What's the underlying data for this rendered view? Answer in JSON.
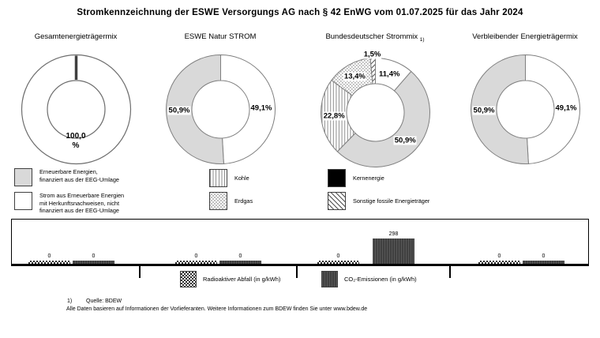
{
  "title": "Stromkennzeichnung der ESWE Versorgungs AG nach § 42 EnWG vom 01.07.2025 für das Jahr 2024",
  "colors": {
    "renewable_gray": "#d9d9d9",
    "outline_gray": "#7f7f7f",
    "co2_bar_dark": "#404040",
    "kernenergie_black": "#000000",
    "background": "#ffffff"
  },
  "chart_data": [
    {
      "type": "donut",
      "title": "Gesamtenergieträgermix",
      "unit": "%",
      "slices": [
        {
          "value": 100.0,
          "label": "100,0\n%",
          "fill": "white",
          "category": "Strom aus Erneuerbare Energien mit Herkunftsnachweisen"
        }
      ]
    },
    {
      "type": "donut",
      "title": "ESWE Natur STROM",
      "unit": "%",
      "slices": [
        {
          "value": 49.1,
          "label": "49,1%",
          "fill": "white",
          "category": "Strom aus Erneuerbare Energien mit Herkunftsnachweisen, nicht finanziert aus der EEG-Umlage"
        },
        {
          "value": 50.9,
          "label": "50,9%",
          "fill": "gray",
          "category": "Erneuerbare Energien, finanziert aus der EEG-Umlage"
        }
      ]
    },
    {
      "type": "donut",
      "title": "Bundesdeutscher Strommix",
      "title_note": "1)",
      "unit": "%",
      "slices": [
        {
          "value": 11.4,
          "label": "11,4%",
          "fill": "white",
          "category": "Strom aus Erneuerbare Energien mit Herkunftsnachweisen, nicht finanziert aus der EEG-Umlage"
        },
        {
          "value": 50.9,
          "label": "50,9%",
          "fill": "gray",
          "category": "Erneuerbare Energien, finanziert aus der EEG-Umlage"
        },
        {
          "value": 22.8,
          "label": "22,8%",
          "fill": "kohle",
          "category": "Kohle"
        },
        {
          "value": 13.4,
          "label": "13,4%",
          "fill": "erdgas",
          "category": "Erdgas"
        },
        {
          "value": 1.5,
          "label": "1,5%",
          "fill": "sonstige",
          "category": "Sonstige fossile Energieträger"
        }
      ]
    },
    {
      "type": "donut",
      "title": "Verbleibender Energieträgermix",
      "unit": "%",
      "slices": [
        {
          "value": 49.1,
          "label": "49,1%",
          "fill": "white",
          "category": "Strom aus Erneuerbare Energien mit Herkunftsnachweisen, nicht finanziert aus der EEG-Umlage"
        },
        {
          "value": 50.9,
          "label": "50,9%",
          "fill": "gray",
          "category": "Erneuerbare Energien, finanziert aus der EEG-Umlage"
        }
      ]
    },
    {
      "type": "bar",
      "categories": [
        "Gesamtenergieträgermix",
        "ESWE Natur STROM",
        "Bundesdeutscher Strommix",
        "Verbleibender Energieträgermix"
      ],
      "series": [
        {
          "name": "Radioaktiver Abfall (in g/kWh)",
          "pattern": "radioaktiv",
          "values": [
            0,
            0,
            0,
            0
          ]
        },
        {
          "name": "CO₂-Emissionen (in g/kWh)",
          "pattern": "co2",
          "values": [
            0,
            0,
            298,
            0
          ]
        }
      ],
      "ymax": 298,
      "grid": false,
      "legend_position": "bottom"
    }
  ],
  "legend": {
    "mix": [
      {
        "pattern": "gray",
        "lines": [
          "Erneuerbare Energien,",
          "finanziert aus der EEG-Umlage"
        ]
      },
      {
        "pattern": "white",
        "lines": [
          "Strom aus Erneuerbare Energien",
          "mit Herkunftsnachweisen, nicht",
          "finanziert aus der EEG-Umlage"
        ]
      },
      {
        "pattern": "kohle",
        "lines": [
          "Kohle"
        ]
      },
      {
        "pattern": "erdgas",
        "lines": [
          "Erdgas"
        ]
      },
      {
        "pattern": "kern",
        "lines": [
          "Kernenergie"
        ]
      },
      {
        "pattern": "sonstige",
        "lines": [
          "Sonstige fossile Energieträger"
        ]
      }
    ],
    "bars": [
      {
        "pattern": "radioaktiv",
        "label": "Radioaktiver Abfall (in g/kWh)"
      },
      {
        "pattern": "co2",
        "label": "CO₂-Emissionen (in g/kWh)"
      }
    ]
  },
  "footnote": {
    "marker": "1)",
    "source": "Quelle: BDEW",
    "text": "Alle Daten basieren auf Informationen der Vorlieferanten. Weitere Informationen zum BDEW finden Sie unter www.bdew.de"
  }
}
